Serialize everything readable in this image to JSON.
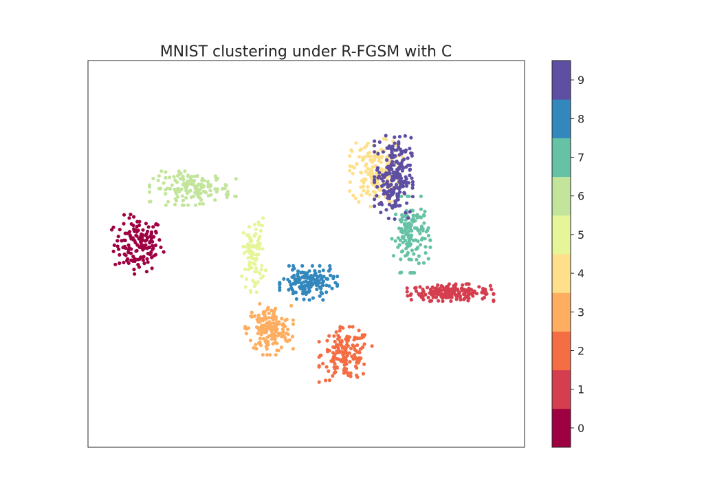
{
  "chart_data": {
    "type": "scatter",
    "title": "MNIST clustering under R-FGSM with C",
    "xlabel": "",
    "ylabel": "",
    "grid": false,
    "axis_ticks": false,
    "xlim": [
      0,
      100
    ],
    "ylim": [
      0,
      100
    ],
    "colorbar": {
      "placement": "right",
      "min": -0.5,
      "max": 9.5,
      "ticks": [
        "0",
        "1",
        "2",
        "3",
        "4",
        "5",
        "6",
        "7",
        "8",
        "9"
      ],
      "colors": [
        "#9e0142",
        "#d53e4f",
        "#f46d43",
        "#fdae61",
        "#fee08b",
        "#e6f598",
        "#c2e59b",
        "#66c2a5",
        "#3288bd",
        "#5e4fa2"
      ]
    },
    "clusters": [
      {
        "label": 0,
        "center": [
          11.5,
          52.5
        ],
        "spread": [
          5.5,
          7.0
        ],
        "count": 150
      },
      {
        "label": 1,
        "center": [
          83.0,
          40.0
        ],
        "spread": [
          9.0,
          2.0
        ],
        "count": 200
      },
      {
        "label": 2,
        "center": [
          59.0,
          24.0
        ],
        "spread": [
          5.5,
          6.5
        ],
        "count": 160
      },
      {
        "label": 3,
        "center": [
          41.5,
          30.5
        ],
        "spread": [
          5.0,
          6.0
        ],
        "count": 180
      },
      {
        "label": 4,
        "center": [
          66.0,
          71.0
        ],
        "spread": [
          5.5,
          8.0
        ],
        "count": 190
      },
      {
        "label": 5,
        "center": [
          38.0,
          50.0
        ],
        "spread": [
          2.5,
          9.0
        ],
        "count": 90
      },
      {
        "label": 6,
        "center": [
          24.0,
          67.0
        ],
        "spread": [
          9.0,
          4.0
        ],
        "count": 150
      },
      {
        "label": 7,
        "center": [
          74.0,
          55.0
        ],
        "spread": [
          4.0,
          9.0
        ],
        "count": 140
      },
      {
        "label": 8,
        "center": [
          50.5,
          42.5
        ],
        "spread": [
          6.0,
          4.0
        ],
        "count": 150
      },
      {
        "label": 9,
        "center": [
          70.0,
          70.0
        ],
        "spread": [
          4.0,
          10.0
        ],
        "count": 220
      }
    ]
  }
}
